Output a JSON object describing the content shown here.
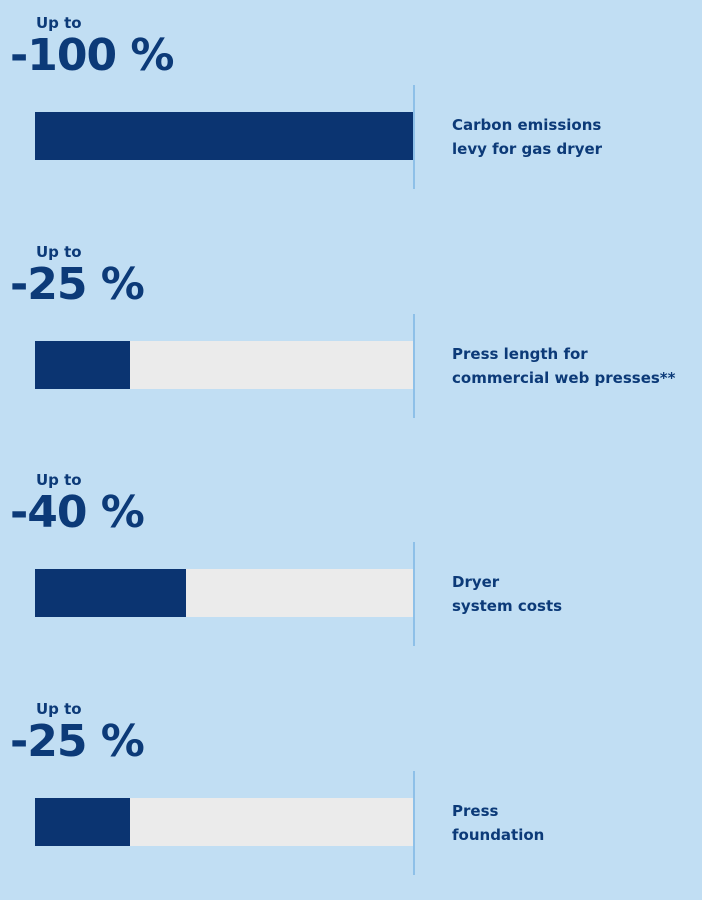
{
  "chart_data": {
    "type": "bar",
    "orientation": "horizontal",
    "value_unit": "%",
    "ylim": [
      0,
      100
    ],
    "items": [
      {
        "prefix": "Up to",
        "percent_text": "-100 %",
        "value": -100,
        "magnitude": 100,
        "label_lines": [
          "Carbon emissions",
          "levy for gas dryer"
        ]
      },
      {
        "prefix": "Up to",
        "percent_text": "-25 %",
        "value": -25,
        "magnitude": 25,
        "label_lines": [
          "Press length for",
          "commercial web presses**"
        ]
      },
      {
        "prefix": "Up to",
        "percent_text": "-40 %",
        "value": -40,
        "magnitude": 40,
        "label_lines": [
          "Dryer",
          "system costs"
        ]
      },
      {
        "prefix": "Up to",
        "percent_text": "-25 %",
        "value": -25,
        "magnitude": 25,
        "label_lines": [
          "Press",
          "foundation"
        ]
      }
    ]
  },
  "colors": {
    "background": "#c1def3",
    "text": "#0c3a78",
    "bar_fill": "#0b3471",
    "bar_track": "#ebebeb",
    "divider": "#8ec0e8"
  }
}
